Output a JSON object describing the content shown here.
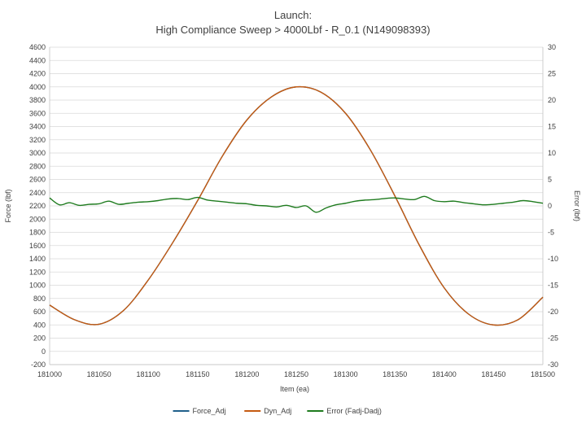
{
  "chart_data": {
    "type": "line",
    "title_line1": "Launch:",
    "title_line2": "High Compliance Sweep > 4000Lbf - R_0.1 (N149098393)",
    "xlabel": "Item (ea)",
    "ylabel_left": "Force (lbf)",
    "ylabel_right": "Error (lbf)",
    "xlim": [
      181000,
      181500
    ],
    "ylim_left": [
      -200,
      4600
    ],
    "ylim_right": [
      -30,
      30
    ],
    "x_ticks": [
      181000,
      181050,
      181100,
      181150,
      181200,
      181250,
      181300,
      181350,
      181400,
      181450,
      181500
    ],
    "y_ticks_left": [
      -200,
      0,
      200,
      400,
      600,
      800,
      1000,
      1200,
      1400,
      1600,
      1800,
      2000,
      2200,
      2400,
      2600,
      2800,
      3000,
      3200,
      3400,
      3600,
      3800,
      4000,
      4200,
      4400,
      4600
    ],
    "y_ticks_right": [
      -30,
      -25,
      -20,
      -15,
      -10,
      -5,
      0,
      5,
      10,
      15,
      20,
      25,
      30
    ],
    "grid": "horizontal",
    "legend_position": "bottom",
    "series": [
      {
        "name": "Force_Adj",
        "axis": "left",
        "color": "#1f5f8b",
        "x": [
          181000,
          181025,
          181050,
          181075,
          181100,
          181125,
          181150,
          181175,
          181200,
          181225,
          181250,
          181275,
          181300,
          181325,
          181350,
          181375,
          181400,
          181425,
          181450,
          181475,
          181500
        ],
        "values": [
          700,
          480,
          410,
          620,
          1080,
          1650,
          2280,
          2950,
          3500,
          3850,
          4000,
          3920,
          3600,
          3050,
          2350,
          1600,
          960,
          560,
          400,
          480,
          820
        ]
      },
      {
        "name": "Dyn_Adj",
        "axis": "left",
        "color": "#c55a11",
        "x": [
          181000,
          181025,
          181050,
          181075,
          181100,
          181125,
          181150,
          181175,
          181200,
          181225,
          181250,
          181275,
          181300,
          181325,
          181350,
          181375,
          181400,
          181425,
          181450,
          181475,
          181500
        ],
        "values": [
          700,
          480,
          410,
          620,
          1080,
          1650,
          2280,
          2950,
          3500,
          3850,
          4000,
          3920,
          3600,
          3050,
          2350,
          1600,
          960,
          560,
          400,
          480,
          820
        ]
      },
      {
        "name": "Error (Fadj-Dadj)",
        "axis": "right",
        "color": "#1e7b1e",
        "x": [
          181000,
          181010,
          181020,
          181030,
          181040,
          181050,
          181060,
          181070,
          181080,
          181090,
          181100,
          181110,
          181120,
          181130,
          181140,
          181150,
          181160,
          181170,
          181180,
          181190,
          181200,
          181210,
          181220,
          181230,
          181240,
          181250,
          181260,
          181270,
          181280,
          181290,
          181300,
          181310,
          181320,
          181330,
          181340,
          181350,
          181360,
          181370,
          181380,
          181390,
          181400,
          181410,
          181420,
          181430,
          181440,
          181450,
          181460,
          181470,
          181480,
          181490,
          181500
        ],
        "values": [
          1.5,
          0.2,
          0.6,
          0.1,
          0.3,
          0.4,
          0.9,
          0.3,
          0.5,
          0.7,
          0.8,
          1.0,
          1.3,
          1.4,
          1.2,
          1.6,
          1.1,
          0.9,
          0.7,
          0.5,
          0.4,
          0.1,
          0.0,
          -0.2,
          0.1,
          -0.3,
          0.0,
          -1.2,
          -0.4,
          0.2,
          0.5,
          0.9,
          1.1,
          1.2,
          1.4,
          1.5,
          1.3,
          1.2,
          1.8,
          1.0,
          0.8,
          0.9,
          0.6,
          0.4,
          0.2,
          0.3,
          0.5,
          0.7,
          1.0,
          0.8,
          0.5
        ]
      }
    ]
  }
}
